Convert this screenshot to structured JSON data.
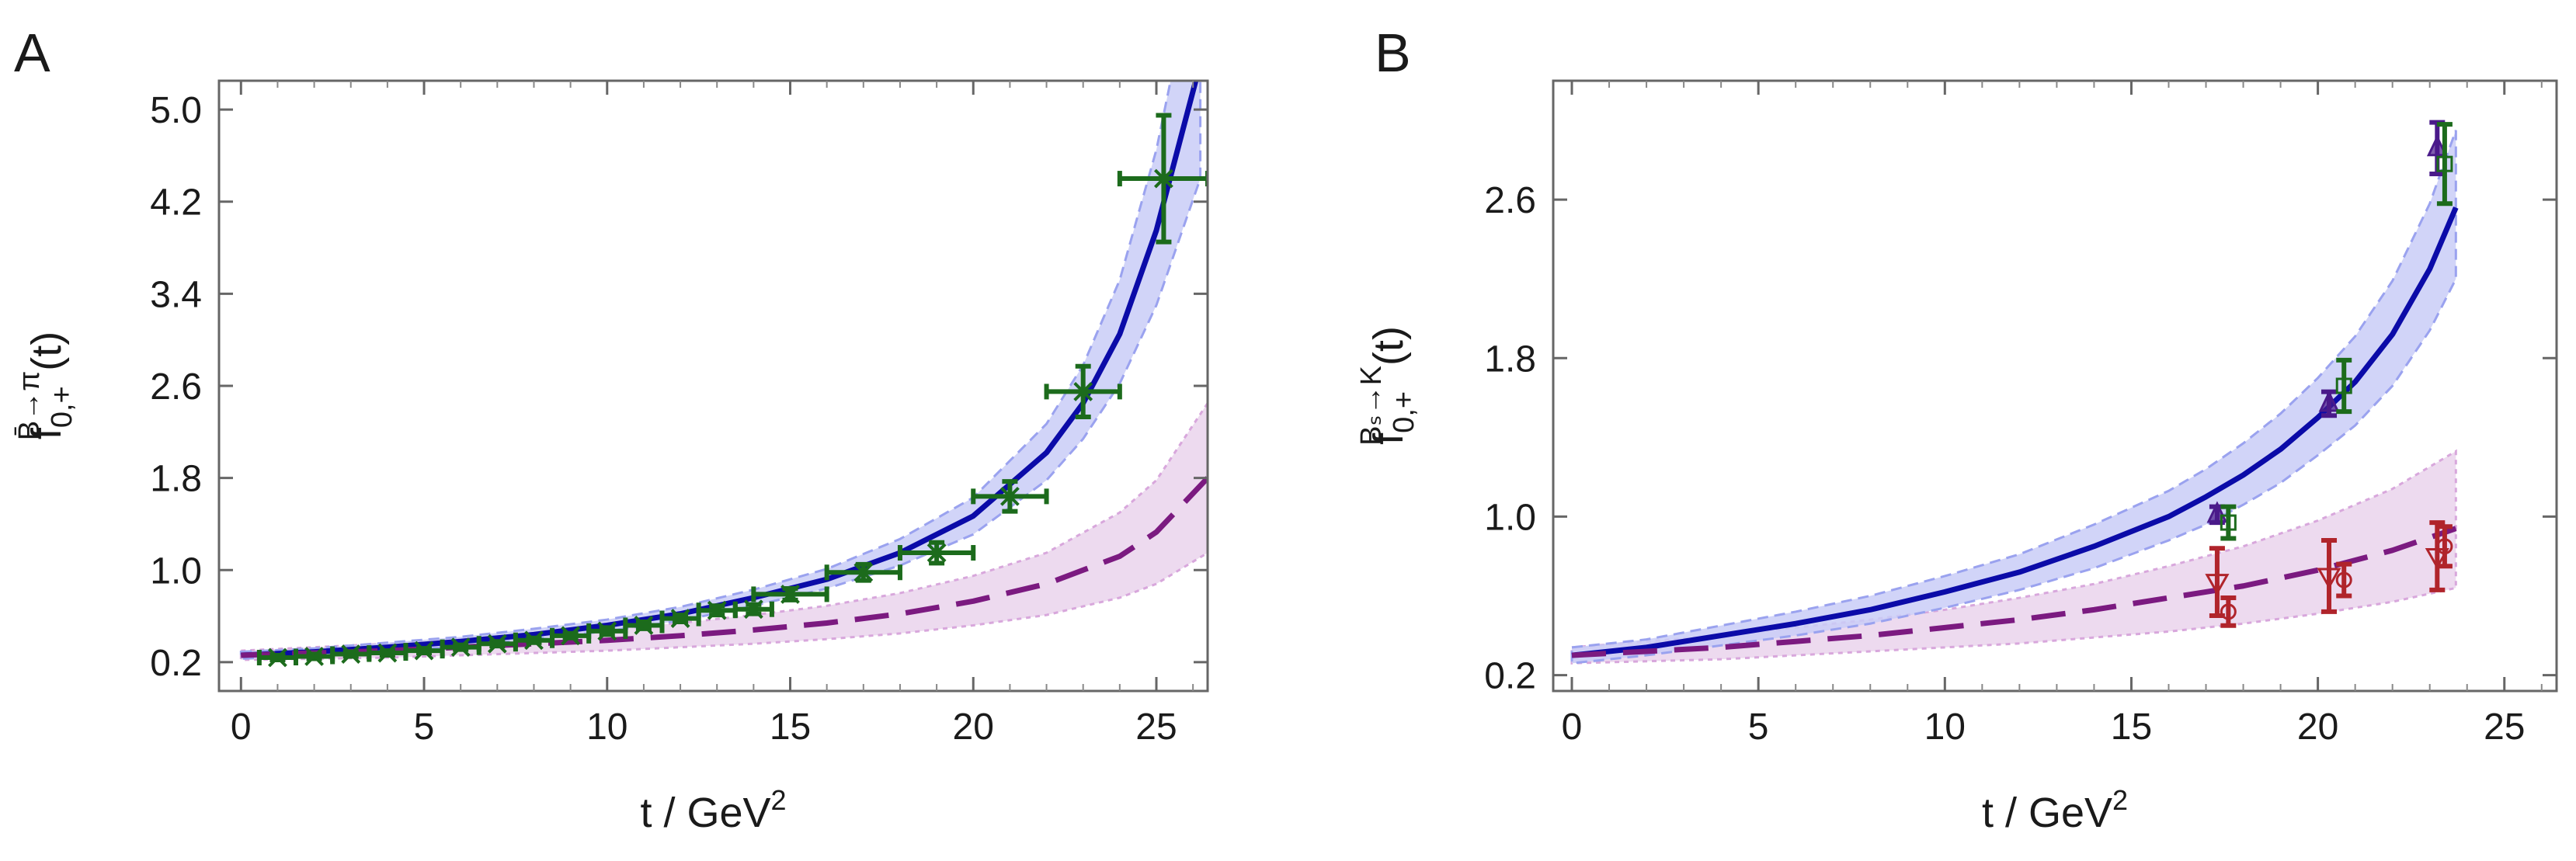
{
  "chart_data": [
    {
      "panel_label": "A",
      "type": "line",
      "title": "",
      "xlabel": "t / GeV",
      "xlabel_sup": "2",
      "ylabel_main": "f",
      "ylabel_sub": "0,+",
      "ylabel_sup": "B̄→π",
      "ylabel_suffix": "(t)",
      "xlim": [
        -0.6,
        26.4
      ],
      "ylim": [
        -0.05,
        5.25
      ],
      "xticks": [
        0,
        5,
        10,
        15,
        20,
        25
      ],
      "xtick_labels": [
        "0",
        "5",
        "10",
        "15",
        "20",
        "25"
      ],
      "yticks": [
        0.2,
        1.0,
        1.8,
        2.6,
        3.4,
        4.2,
        5.0
      ],
      "ytick_labels": [
        "0.2",
        "1.0",
        "1.8",
        "2.6",
        "3.4",
        "4.2",
        "5.0"
      ],
      "grid": false,
      "colors": {
        "f_plus": "#0b0ba8",
        "f_zero": "#7b1a80",
        "band_plus": "#c9ccf7",
        "band_zero": "#ead3ec",
        "data": "#1c6b1c"
      },
      "series": [
        {
          "name": "f+",
          "style": "solid",
          "x": [
            0,
            2,
            4,
            6,
            8,
            10,
            12,
            14,
            16,
            18,
            20,
            22,
            23,
            24,
            25,
            26.2
          ],
          "y": [
            0.26,
            0.29,
            0.33,
            0.38,
            0.44,
            0.52,
            0.62,
            0.76,
            0.92,
            1.15,
            1.47,
            2.02,
            2.45,
            3.05,
            3.95,
            5.4
          ],
          "band_lower": [
            0.23,
            0.26,
            0.29,
            0.34,
            0.4,
            0.47,
            0.56,
            0.69,
            0.84,
            1.04,
            1.31,
            1.78,
            2.14,
            2.62,
            3.3,
            4.4
          ],
          "band_upper": [
            0.29,
            0.32,
            0.37,
            0.42,
            0.49,
            0.57,
            0.68,
            0.83,
            1.01,
            1.27,
            1.63,
            2.27,
            2.78,
            3.52,
            4.65,
            6.5
          ]
        },
        {
          "name": "f0",
          "style": "dashed",
          "x": [
            0,
            2,
            4,
            6,
            8,
            10,
            12,
            14,
            16,
            18,
            20,
            22,
            24,
            25,
            26.4
          ],
          "y": [
            0.26,
            0.28,
            0.3,
            0.33,
            0.36,
            0.39,
            0.43,
            0.48,
            0.54,
            0.62,
            0.73,
            0.88,
            1.12,
            1.33,
            1.8
          ],
          "band_lower": [
            0.22,
            0.23,
            0.24,
            0.26,
            0.28,
            0.3,
            0.33,
            0.36,
            0.4,
            0.45,
            0.52,
            0.61,
            0.76,
            0.88,
            1.15
          ],
          "band_upper": [
            0.3,
            0.33,
            0.36,
            0.4,
            0.44,
            0.49,
            0.54,
            0.61,
            0.69,
            0.8,
            0.95,
            1.15,
            1.5,
            1.78,
            2.45
          ]
        }
      ],
      "data_points": [
        {
          "x": 1,
          "y": 0.24,
          "xerr": 0.5,
          "yerr": 0.02,
          "marker": "cross"
        },
        {
          "x": 2,
          "y": 0.25,
          "xerr": 0.5,
          "yerr": 0.02,
          "marker": "cross"
        },
        {
          "x": 3,
          "y": 0.27,
          "xerr": 0.5,
          "yerr": 0.02,
          "marker": "cross"
        },
        {
          "x": 4,
          "y": 0.28,
          "xerr": 0.5,
          "yerr": 0.02,
          "marker": "cross"
        },
        {
          "x": 5,
          "y": 0.3,
          "xerr": 0.5,
          "yerr": 0.02,
          "marker": "cross"
        },
        {
          "x": 6,
          "y": 0.33,
          "xerr": 0.5,
          "yerr": 0.02,
          "marker": "cross"
        },
        {
          "x": 7,
          "y": 0.36,
          "xerr": 0.5,
          "yerr": 0.02,
          "marker": "cross"
        },
        {
          "x": 8,
          "y": 0.39,
          "xerr": 0.5,
          "yerr": 0.02,
          "marker": "cross"
        },
        {
          "x": 9,
          "y": 0.43,
          "xerr": 0.5,
          "yerr": 0.02,
          "marker": "cross"
        },
        {
          "x": 10,
          "y": 0.47,
          "xerr": 0.5,
          "yerr": 0.03,
          "marker": "cross"
        },
        {
          "x": 11,
          "y": 0.52,
          "xerr": 0.5,
          "yerr": 0.03,
          "marker": "cross"
        },
        {
          "x": 12,
          "y": 0.58,
          "xerr": 0.5,
          "yerr": 0.03,
          "marker": "cross"
        },
        {
          "x": 13,
          "y": 0.65,
          "xerr": 0.5,
          "yerr": 0.04,
          "marker": "cross"
        },
        {
          "x": 14,
          "y": 0.66,
          "xerr": 0.5,
          "yerr": 0.04,
          "marker": "cross"
        },
        {
          "x": 15,
          "y": 0.79,
          "xerr": 1.0,
          "yerr": 0.05,
          "marker": "cross"
        },
        {
          "x": 17,
          "y": 0.98,
          "xerr": 1.0,
          "yerr": 0.07,
          "marker": "cross"
        },
        {
          "x": 19,
          "y": 1.15,
          "xerr": 1.0,
          "yerr": 0.09,
          "marker": "cross"
        },
        {
          "x": 21,
          "y": 1.64,
          "xerr": 1.0,
          "yerr": 0.13,
          "marker": "cross"
        },
        {
          "x": 23,
          "y": 2.55,
          "xerr": 1.0,
          "yerr": 0.22,
          "marker": "cross"
        },
        {
          "x": 25.2,
          "y": 4.4,
          "xerr": 1.2,
          "yerr": 0.55,
          "marker": "cross"
        }
      ]
    },
    {
      "panel_label": "B",
      "type": "line",
      "title": "",
      "xlabel": "t / GeV",
      "xlabel_sup": "2",
      "ylabel_main": "f",
      "ylabel_sub": "0,+",
      "ylabel_sup": "Bₛ→K",
      "ylabel_suffix": "(t)",
      "xlim": [
        -0.5,
        26.4
      ],
      "ylim": [
        0.12,
        3.2
      ],
      "xticks": [
        0,
        5,
        10,
        15,
        20,
        25
      ],
      "xtick_labels": [
        "0",
        "5",
        "10",
        "15",
        "20",
        "25"
      ],
      "yticks": [
        0.2,
        1.0,
        1.8,
        2.6
      ],
      "ytick_labels": [
        "0.2",
        "1.0",
        "1.8",
        "2.6"
      ],
      "grid": false,
      "colors": {
        "f_plus": "#0b0ba8",
        "f_zero": "#7b1a80",
        "band_plus": "#c9ccf7",
        "band_zero": "#ead3ec"
      },
      "series": [
        {
          "name": "f+",
          "style": "solid",
          "x": [
            0,
            2,
            4,
            6,
            8,
            10,
            12,
            14,
            16,
            17,
            18,
            19,
            20,
            21,
            22,
            23,
            23.7
          ],
          "y": [
            0.3,
            0.34,
            0.4,
            0.46,
            0.53,
            0.62,
            0.72,
            0.85,
            1.0,
            1.1,
            1.21,
            1.34,
            1.5,
            1.68,
            1.92,
            2.25,
            2.56
          ],
          "band_lower": [
            0.26,
            0.3,
            0.35,
            0.4,
            0.46,
            0.54,
            0.63,
            0.74,
            0.88,
            0.96,
            1.06,
            1.17,
            1.31,
            1.46,
            1.66,
            1.94,
            2.2
          ],
          "band_upper": [
            0.34,
            0.38,
            0.45,
            0.52,
            0.6,
            0.7,
            0.81,
            0.96,
            1.13,
            1.24,
            1.37,
            1.52,
            1.7,
            1.91,
            2.19,
            2.58,
            2.95
          ]
        },
        {
          "name": "f0",
          "style": "dashed",
          "x": [
            0,
            2,
            4,
            6,
            8,
            10,
            12,
            14,
            16,
            18,
            20,
            22,
            23.7
          ],
          "y": [
            0.3,
            0.32,
            0.34,
            0.37,
            0.4,
            0.44,
            0.48,
            0.53,
            0.59,
            0.65,
            0.73,
            0.83,
            0.94
          ],
          "band_lower": [
            0.26,
            0.27,
            0.28,
            0.3,
            0.32,
            0.34,
            0.36,
            0.39,
            0.42,
            0.46,
            0.51,
            0.57,
            0.64
          ],
          "band_upper": [
            0.34,
            0.37,
            0.4,
            0.44,
            0.48,
            0.53,
            0.59,
            0.66,
            0.75,
            0.85,
            0.98,
            1.14,
            1.33
          ]
        }
      ],
      "data_points": [
        {
          "x": 17.3,
          "y": 1.01,
          "yerr": 0.04,
          "marker": "triangle-up",
          "color": "#4a1a8a"
        },
        {
          "x": 17.6,
          "y": 0.97,
          "yerr": 0.08,
          "marker": "square",
          "color": "#1c6b1c"
        },
        {
          "x": 20.3,
          "y": 1.57,
          "yerr": 0.06,
          "marker": "triangle-up",
          "color": "#4a1a8a"
        },
        {
          "x": 20.7,
          "y": 1.66,
          "yerr": 0.13,
          "marker": "square",
          "color": "#1c6b1c"
        },
        {
          "x": 23.2,
          "y": 2.86,
          "yerr": 0.13,
          "marker": "triangle-up",
          "color": "#4a1a8a"
        },
        {
          "x": 23.4,
          "y": 2.78,
          "yerr": 0.2,
          "marker": "square",
          "color": "#1c6b1c"
        },
        {
          "x": 17.3,
          "y": 0.67,
          "yerr": 0.17,
          "marker": "triangle-down",
          "color": "#b0242b"
        },
        {
          "x": 17.6,
          "y": 0.52,
          "yerr": 0.07,
          "marker": "circle",
          "color": "#b0242b"
        },
        {
          "x": 20.3,
          "y": 0.7,
          "yerr": 0.18,
          "marker": "triangle-down",
          "color": "#b0242b"
        },
        {
          "x": 20.7,
          "y": 0.68,
          "yerr": 0.08,
          "marker": "circle",
          "color": "#b0242b"
        },
        {
          "x": 23.2,
          "y": 0.8,
          "yerr": 0.17,
          "marker": "triangle-down",
          "color": "#b0242b"
        },
        {
          "x": 23.4,
          "y": 0.85,
          "yerr": 0.1,
          "marker": "circle",
          "color": "#b0242b"
        }
      ]
    }
  ]
}
